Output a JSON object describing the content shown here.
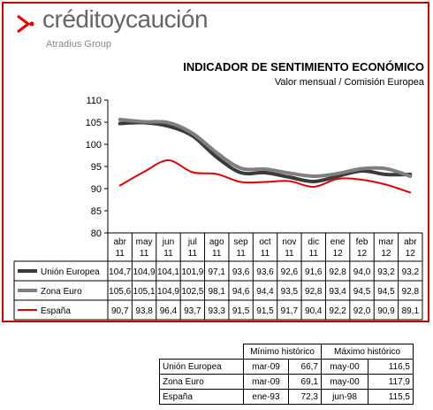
{
  "brand": {
    "name": "créditoycaución",
    "subline": "Atradius Group"
  },
  "chart_data": {
    "type": "line",
    "title": "INDICADOR DE SENTIMIENTO ECONÓMICO",
    "subtitle": "Valor mensual / Comisión Europea",
    "categories": [
      [
        "abr",
        "11"
      ],
      [
        "may",
        "11"
      ],
      [
        "jun",
        "11"
      ],
      [
        "jul",
        "11"
      ],
      [
        "ago",
        "11"
      ],
      [
        "sep",
        "11"
      ],
      [
        "oct",
        "11"
      ],
      [
        "nov",
        "11"
      ],
      [
        "dic",
        "11"
      ],
      [
        "ene",
        "12"
      ],
      [
        "feb",
        "12"
      ],
      [
        "mar",
        "12"
      ],
      [
        "abr",
        "12"
      ]
    ],
    "ylim": [
      80,
      110
    ],
    "yticks": [
      80,
      85,
      90,
      95,
      100,
      105,
      110
    ],
    "grid": false,
    "series": [
      {
        "name": "Unión Europea",
        "color": "#3a3a3a",
        "values": [
          104.7,
          104.9,
          104.1,
          101.9,
          97.1,
          93.6,
          93.6,
          92.6,
          91.6,
          92.8,
          94.0,
          93.2,
          93.2
        ],
        "labels": [
          "104,7",
          "104,9",
          "104,1",
          "101,9",
          "97,1",
          "93,6",
          "93,6",
          "92,6",
          "91,6",
          "92,8",
          "94,0",
          "93,2",
          "93,2"
        ]
      },
      {
        "name": "Zona Euro",
        "color": "#7f7f7f",
        "values": [
          105.6,
          105.1,
          104.9,
          102.5,
          98.1,
          94.6,
          94.4,
          93.5,
          92.8,
          93.4,
          94.5,
          94.5,
          92.8
        ],
        "labels": [
          "105,6",
          "105,1",
          "104,9",
          "102,5",
          "98,1",
          "94,6",
          "94,4",
          "93,5",
          "92,8",
          "93,4",
          "94,5",
          "94,5",
          "92,8"
        ]
      },
      {
        "name": "España",
        "color": "#e60000",
        "values": [
          90.7,
          93.8,
          96.4,
          93.7,
          93.3,
          91.5,
          91.5,
          91.7,
          90.4,
          92.2,
          92.0,
          90.9,
          89.1
        ],
        "labels": [
          "90,7",
          "93,8",
          "96,4",
          "93,7",
          "93,3",
          "91,5",
          "91,5",
          "91,7",
          "90,4",
          "92,2",
          "92,0",
          "90,9",
          "89,1"
        ]
      }
    ]
  },
  "reference_table": {
    "headers": [
      "Mínimo histórico",
      "Máximo histórico"
    ],
    "rows": [
      {
        "name": "Unión Europea",
        "min_date": "mar-09",
        "min_value": "66,7",
        "max_date": "may-00",
        "max_value": "116,5"
      },
      {
        "name": "Zona Euro",
        "min_date": "mar-09",
        "min_value": "69,1",
        "max_date": "may-00",
        "max_value": "117,9"
      },
      {
        "name": "España",
        "min_date": "ene-93",
        "min_value": "72,3",
        "max_date": "jun-98",
        "max_value": "115,5"
      }
    ]
  }
}
